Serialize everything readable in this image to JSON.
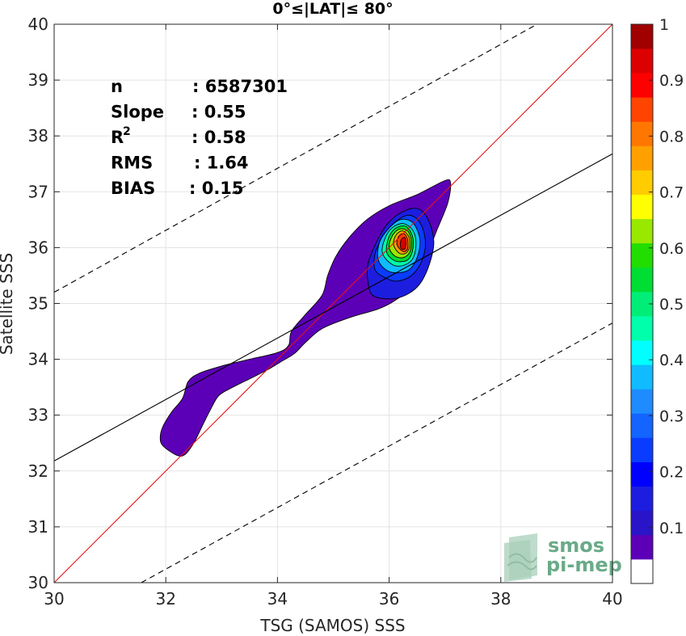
{
  "chart_data": {
    "type": "heatmap",
    "title": "0°≤|LAT|≤ 80°",
    "xlabel": "TSG (SAMOS) SSS",
    "ylabel": "Satellite SSS",
    "xlim": [
      30,
      40
    ],
    "ylim": [
      30,
      40
    ],
    "x_ticks": [
      30,
      32,
      34,
      36,
      38,
      40
    ],
    "y_ticks": [
      30,
      31,
      32,
      33,
      34,
      35,
      36,
      37,
      38,
      39,
      40
    ],
    "grid": true,
    "stats": [
      {
        "label": "n",
        "value": ": 6587301"
      },
      {
        "label": "Slope",
        "value": ": 0.55"
      },
      {
        "label": "R",
        "sup": "2",
        "value": ": 0.58"
      },
      {
        "label": "RMS",
        "value": ": 1.64"
      },
      {
        "label": "BIAS",
        "value": ": 0.15"
      }
    ],
    "lines": {
      "identity": {
        "color": "#e8110f",
        "from": [
          30,
          30
        ],
        "to": [
          40,
          40
        ]
      },
      "fit": {
        "color": "#000000",
        "from": [
          30,
          32.18
        ],
        "to": [
          40,
          37.68
        ]
      },
      "upper_bound": {
        "color": "#000000",
        "dash": true,
        "from": [
          30,
          35.2
        ],
        "to": [
          38.65,
          40
        ]
      },
      "lower_bound": {
        "color": "#000000",
        "dash": true,
        "from": [
          31.56,
          30
        ],
        "to": [
          40,
          34.65
        ]
      }
    },
    "density_contours": [
      {
        "level": 0.05,
        "points": [
          [
            32.2,
            32.28
          ],
          [
            31.95,
            32.45
          ],
          [
            31.9,
            32.6
          ],
          [
            31.95,
            32.8
          ],
          [
            32.1,
            33.05
          ],
          [
            32.3,
            33.3
          ],
          [
            32.4,
            33.6
          ],
          [
            32.6,
            33.75
          ],
          [
            33.0,
            33.88
          ],
          [
            33.5,
            34.0
          ],
          [
            34.0,
            34.12
          ],
          [
            34.2,
            34.25
          ],
          [
            34.25,
            34.5
          ],
          [
            34.5,
            34.8
          ],
          [
            34.8,
            35.15
          ],
          [
            34.9,
            35.5
          ],
          [
            35.05,
            35.85
          ],
          [
            35.3,
            36.2
          ],
          [
            35.6,
            36.5
          ],
          [
            36.0,
            36.75
          ],
          [
            36.5,
            36.95
          ],
          [
            37.0,
            37.2
          ],
          [
            37.1,
            37.15
          ],
          [
            37.05,
            36.8
          ],
          [
            36.85,
            36.3
          ],
          [
            36.65,
            35.8
          ],
          [
            36.4,
            35.3
          ],
          [
            36.1,
            35.05
          ],
          [
            35.8,
            34.9
          ],
          [
            35.3,
            34.75
          ],
          [
            34.8,
            34.55
          ],
          [
            34.5,
            34.3
          ],
          [
            34.3,
            34.1
          ],
          [
            34.05,
            33.95
          ],
          [
            33.8,
            33.8
          ],
          [
            33.5,
            33.65
          ],
          [
            33.2,
            33.5
          ],
          [
            32.95,
            33.35
          ],
          [
            32.8,
            33.1
          ],
          [
            32.65,
            32.8
          ],
          [
            32.5,
            32.5
          ],
          [
            32.35,
            32.3
          ]
        ]
      },
      {
        "level": 0.15,
        "points": [
          [
            35.7,
            35.15
          ],
          [
            35.62,
            35.4
          ],
          [
            35.62,
            35.7
          ],
          [
            35.75,
            36.05
          ],
          [
            35.95,
            36.4
          ],
          [
            36.2,
            36.62
          ],
          [
            36.5,
            36.7
          ],
          [
            36.7,
            36.5
          ],
          [
            36.8,
            36.1
          ],
          [
            36.72,
            35.7
          ],
          [
            36.55,
            35.35
          ],
          [
            36.3,
            35.15
          ],
          [
            36.0,
            35.08
          ]
        ]
      },
      {
        "level": 0.25,
        "points": [
          [
            35.75,
            35.6
          ],
          [
            35.75,
            35.9
          ],
          [
            35.9,
            36.2
          ],
          [
            36.1,
            36.45
          ],
          [
            36.35,
            36.58
          ],
          [
            36.55,
            36.45
          ],
          [
            36.65,
            36.1
          ],
          [
            36.58,
            35.75
          ],
          [
            36.4,
            35.5
          ],
          [
            36.15,
            35.4
          ],
          [
            35.95,
            35.45
          ]
        ]
      },
      {
        "level": 0.35,
        "points": [
          [
            35.8,
            35.8
          ],
          [
            35.83,
            36.1
          ],
          [
            36.0,
            36.35
          ],
          [
            36.2,
            36.5
          ],
          [
            36.42,
            36.45
          ],
          [
            36.55,
            36.15
          ],
          [
            36.5,
            35.82
          ],
          [
            36.35,
            35.6
          ],
          [
            36.1,
            35.55
          ],
          [
            35.92,
            35.62
          ]
        ]
      },
      {
        "level": 0.45,
        "points": [
          [
            35.88,
            35.9
          ],
          [
            35.92,
            36.15
          ],
          [
            36.05,
            36.35
          ],
          [
            36.25,
            36.43
          ],
          [
            36.43,
            36.3
          ],
          [
            36.48,
            36.05
          ],
          [
            36.42,
            35.8
          ],
          [
            36.25,
            35.68
          ],
          [
            36.05,
            35.7
          ]
        ]
      },
      {
        "level": 0.55,
        "points": [
          [
            35.95,
            35.95
          ],
          [
            36.0,
            36.2
          ],
          [
            36.12,
            36.35
          ],
          [
            36.3,
            36.38
          ],
          [
            36.42,
            36.2
          ],
          [
            36.42,
            35.95
          ],
          [
            36.33,
            35.78
          ],
          [
            36.15,
            35.75
          ],
          [
            36.02,
            35.82
          ]
        ]
      },
      {
        "level": 0.65,
        "points": [
          [
            36.0,
            36.0
          ],
          [
            36.05,
            36.2
          ],
          [
            36.18,
            36.33
          ],
          [
            36.33,
            36.3
          ],
          [
            36.4,
            36.12
          ],
          [
            36.37,
            35.92
          ],
          [
            36.25,
            35.82
          ],
          [
            36.1,
            35.85
          ]
        ]
      },
      {
        "level": 0.75,
        "points": [
          [
            36.08,
            36.05
          ],
          [
            36.12,
            36.22
          ],
          [
            36.24,
            36.3
          ],
          [
            36.35,
            36.2
          ],
          [
            36.37,
            36.02
          ],
          [
            36.3,
            35.9
          ],
          [
            36.18,
            35.9
          ]
        ]
      },
      {
        "level": 0.85,
        "points": [
          [
            36.14,
            36.05
          ],
          [
            36.17,
            36.2
          ],
          [
            36.26,
            36.25
          ],
          [
            36.33,
            36.15
          ],
          [
            36.33,
            35.98
          ],
          [
            36.25,
            35.93
          ]
        ]
      },
      {
        "level": 0.95,
        "points": [
          [
            36.2,
            36.05
          ],
          [
            36.22,
            36.15
          ],
          [
            36.28,
            36.18
          ],
          [
            36.3,
            36.08
          ],
          [
            36.28,
            35.98
          ],
          [
            36.22,
            35.98
          ]
        ]
      }
    ],
    "colorbar": {
      "range": [
        0,
        1
      ],
      "ticks": [
        0.1,
        0.2,
        0.3,
        0.4,
        0.5,
        0.6,
        0.7,
        0.8,
        0.9,
        1
      ],
      "colors": [
        "#ffffff",
        "#5c00b8",
        "#2a14c8",
        "#1d1de0",
        "#0000ff",
        "#0a3cff",
        "#1464ff",
        "#1e8cff",
        "#10bcff",
        "#00ffff",
        "#00ffaa",
        "#00ee77",
        "#00dd33",
        "#22dd00",
        "#99e800",
        "#ffff00",
        "#ffcc00",
        "#ffa000",
        "#ff7700",
        "#ff4400",
        "#ff0000",
        "#dd0000",
        "#a00000"
      ]
    },
    "watermark": {
      "line1": "smos",
      "line2": "pi-mep",
      "color": "#6aaa88"
    }
  }
}
